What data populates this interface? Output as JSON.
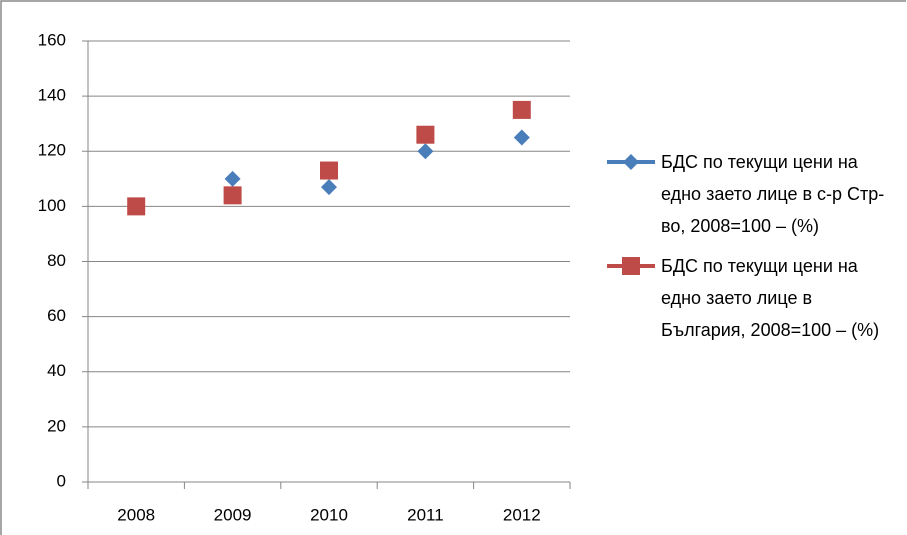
{
  "chart_data": {
    "type": "line",
    "categories": [
      "2008",
      "2009",
      "2010",
      "2011",
      "2012"
    ],
    "series": [
      {
        "name": "БДС по текущи цени на едно заето лице в с-р Стр-во, 2008=100 – (%)",
        "color": "#4a7ebb",
        "marker": "diamond",
        "values": [
          100,
          110,
          107,
          120,
          125
        ]
      },
      {
        "name": "БДС по текущи цени на едно заето лице в България, 2008=100 – (%)",
        "color": "#be4b48",
        "marker": "square",
        "values": [
          100,
          104,
          113,
          126,
          135
        ]
      }
    ],
    "ylim": [
      0,
      160
    ],
    "yticks": [
      0,
      20,
      40,
      60,
      80,
      100,
      120,
      140,
      160
    ],
    "grid": true,
    "legend": "right"
  }
}
